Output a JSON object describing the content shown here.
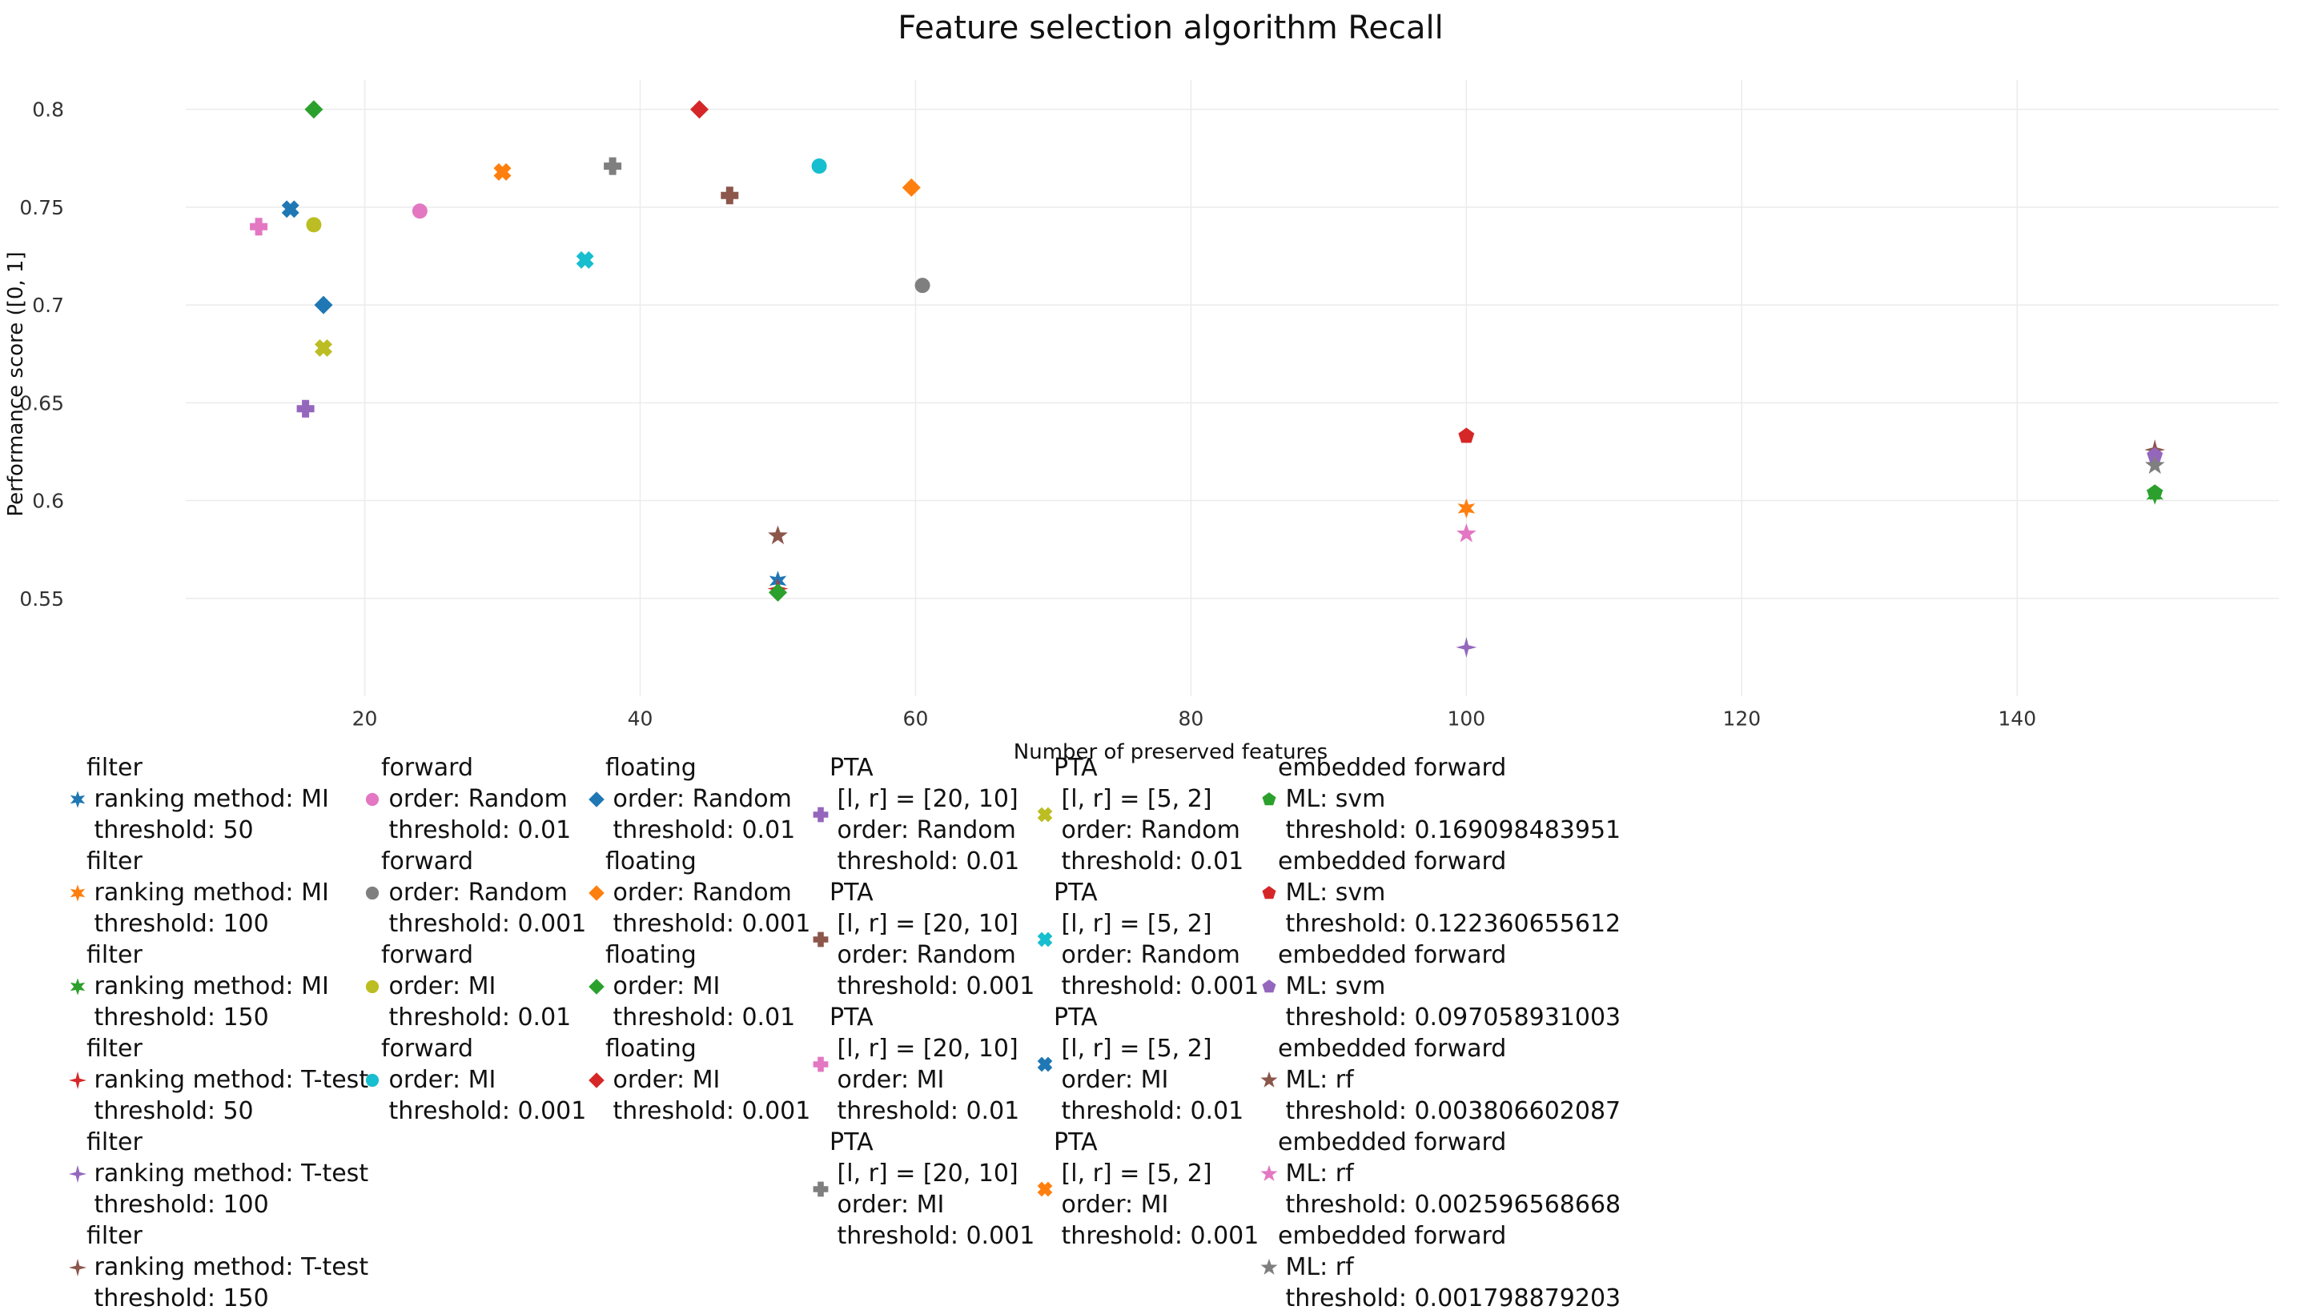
{
  "chart_data": {
    "type": "scatter",
    "title": "Feature selection algorithm Recall",
    "xlabel": "Number of preserved features",
    "ylabel": "Performance score ([0, 1]",
    "xlim": [
      7,
      159
    ],
    "ylim": [
      0.5,
      0.815
    ],
    "xticks": [
      20,
      40,
      60,
      80,
      100,
      120,
      140
    ],
    "yticks": [
      0.55,
      0.6,
      0.65,
      0.7,
      0.75,
      0.8
    ],
    "ytick_labels": [
      "0.55",
      "0.6",
      "0.65",
      "0.7",
      "0.75",
      "0.8"
    ],
    "grid": true,
    "legend_position": "bottom",
    "series": [
      {
        "name": "filter\n ranking method: MI\n threshold: 50",
        "color": "#1f77b4",
        "symbol": "star",
        "x": [
          50
        ],
        "y": [
          0.559
        ]
      },
      {
        "name": "filter\n ranking method: MI\n threshold: 100",
        "color": "#ff7f0e",
        "symbol": "star",
        "x": [
          100
        ],
        "y": [
          0.596
        ]
      },
      {
        "name": "filter\n ranking method: MI\n threshold: 150",
        "color": "#2ca02c",
        "symbol": "star",
        "x": [
          150
        ],
        "y": [
          0.603
        ]
      },
      {
        "name": "filter\n ranking method: T-test\n threshold: 50",
        "color": "#d62728",
        "symbol": "star-four",
        "x": [
          50
        ],
        "y": [
          0.555
        ]
      },
      {
        "name": "filter\n ranking method: T-test\n threshold: 100",
        "color": "#9467bd",
        "symbol": "star-four",
        "x": [
          100
        ],
        "y": [
          0.525
        ]
      },
      {
        "name": "filter\n ranking method: T-test\n threshold: 150",
        "color": "#8c564b",
        "symbol": "star-four",
        "x": [
          150
        ],
        "y": [
          0.626
        ]
      },
      {
        "name": "forward\n order: Random\n threshold: 0.01",
        "color": "#e377c2",
        "symbol": "circle",
        "x": [
          24
        ],
        "y": [
          0.748
        ]
      },
      {
        "name": "forward\n order: Random\n threshold: 0.001",
        "color": "#7f7f7f",
        "symbol": "circle",
        "x": [
          60.5
        ],
        "y": [
          0.71
        ]
      },
      {
        "name": "forward\n order: MI\n threshold: 0.01",
        "color": "#bcbd22",
        "symbol": "circle",
        "x": [
          16.3
        ],
        "y": [
          0.741
        ]
      },
      {
        "name": "forward\n order: MI\n threshold: 0.001",
        "color": "#17becf",
        "symbol": "circle",
        "x": [
          53
        ],
        "y": [
          0.771
        ]
      },
      {
        "name": "floating\n order: Random\n threshold: 0.01",
        "color": "#1f77b4",
        "symbol": "diamond",
        "x": [
          17
        ],
        "y": [
          0.7
        ]
      },
      {
        "name": "floating\n order: Random\n threshold: 0.001",
        "color": "#ff7f0e",
        "symbol": "diamond",
        "x": [
          59.7
        ],
        "y": [
          0.76
        ]
      },
      {
        "name": "floating\n order: MI\n threshold: 0.01",
        "color": "#2ca02c",
        "symbol": "diamond",
        "x": [
          16.3,
          50
        ],
        "y": [
          0.8,
          0.553
        ]
      },
      {
        "name": "floating\n order: MI\n threshold: 0.001",
        "color": "#d62728",
        "symbol": "diamond",
        "x": [
          44.3
        ],
        "y": [
          0.8
        ]
      },
      {
        "name": "PTA\n [l, r] = [20, 10]\n order: Random\n threshold: 0.01",
        "color": "#9467bd",
        "symbol": "cross",
        "x": [
          15.7
        ],
        "y": [
          0.647
        ]
      },
      {
        "name": "PTA\n [l, r] = [20, 10]\n order: Random\n threshold: 0.001",
        "color": "#8c564b",
        "symbol": "cross",
        "x": [
          46.5
        ],
        "y": [
          0.756
        ]
      },
      {
        "name": "PTA\n [l, r] = [20, 10]\n order: MI\n threshold: 0.01",
        "color": "#e377c2",
        "symbol": "cross",
        "x": [
          12.3
        ],
        "y": [
          0.74
        ]
      },
      {
        "name": "PTA\n [l, r] = [20, 10]\n order: MI\n threshold: 0.001",
        "color": "#7f7f7f",
        "symbol": "cross",
        "x": [
          38
        ],
        "y": [
          0.771
        ]
      },
      {
        "name": "PTA\n [l, r] = [5, 2]\n order: Random\n threshold: 0.01",
        "color": "#bcbd22",
        "symbol": "x",
        "x": [
          17
        ],
        "y": [
          0.678
        ]
      },
      {
        "name": "PTA\n [l, r] = [5, 2]\n order: Random\n threshold: 0.001",
        "color": "#17becf",
        "symbol": "x",
        "x": [
          36
        ],
        "y": [
          0.723
        ]
      },
      {
        "name": "PTA\n [l, r] = [5, 2]\n order: MI\n threshold: 0.01",
        "color": "#1f77b4",
        "symbol": "x",
        "x": [
          14.6
        ],
        "y": [
          0.749
        ]
      },
      {
        "name": "PTA\n [l, r] = [5, 2]\n order: MI\n threshold: 0.001",
        "color": "#ff7f0e",
        "symbol": "x",
        "x": [
          30
        ],
        "y": [
          0.768
        ]
      },
      {
        "name": "embedded forward\n ML: svm\n threshold: 0.169098483951",
        "color": "#2ca02c",
        "symbol": "pentagon",
        "x": [
          150
        ],
        "y": [
          0.604
        ]
      },
      {
        "name": "embedded forward\n ML: svm\n threshold: 0.122360655612",
        "color": "#d62728",
        "symbol": "pentagon",
        "x": [
          100
        ],
        "y": [
          0.633
        ]
      },
      {
        "name": "embedded forward\n ML: svm\n threshold: 0.097058931003",
        "color": "#9467bd",
        "symbol": "pentagon",
        "x": [
          150
        ],
        "y": [
          0.623
        ]
      },
      {
        "name": "embedded forward\n ML: rf\n threshold: 0.003806602087",
        "color": "#8c564b",
        "symbol": "star5",
        "x": [
          50
        ],
        "y": [
          0.582
        ]
      },
      {
        "name": "embedded forward\n ML: rf\n threshold: 0.002596568668",
        "color": "#e377c2",
        "symbol": "star5",
        "x": [
          100
        ],
        "y": [
          0.583
        ]
      },
      {
        "name": "embedded forward\n ML: rf\n threshold: 0.001798879203",
        "color": "#7f7f7f",
        "symbol": "star5",
        "x": [
          150
        ],
        "y": [
          0.618
        ]
      }
    ]
  }
}
